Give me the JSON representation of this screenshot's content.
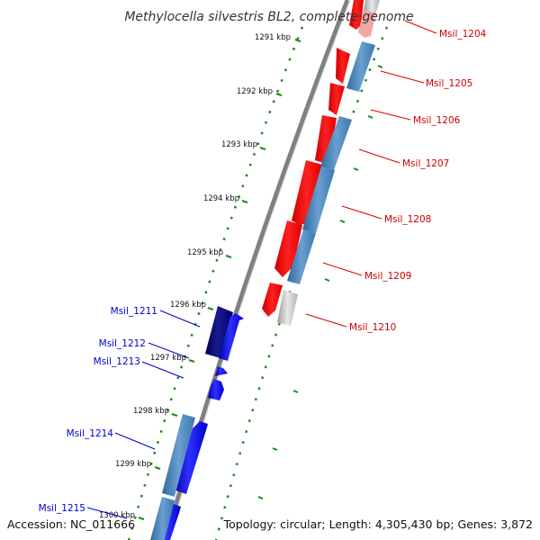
{
  "title": "Methylocella silvestris BL2, complete genome",
  "footer": {
    "accession": "Accession: NC_011666",
    "topology": "Topology: circular; Length: 4,305,430 bp; Genes: 3,872"
  },
  "colors": {
    "backbone": "#808080",
    "tick": "#1a8a1a",
    "forward_cds": "#0000ff",
    "forward_cds_dark": "#000080",
    "reverse_cds": "#ff0000",
    "gene_track": "#4682b4",
    "other_feature": "#c0c0c0",
    "forward_label": "#0000cc",
    "reverse_label": "#cc0000"
  },
  "ticks": [
    {
      "label": "1291 kbp"
    },
    {
      "label": "1292 kbp"
    },
    {
      "label": "1293 kbp"
    },
    {
      "label": "1294 kbp"
    },
    {
      "label": "1295 kbp"
    },
    {
      "label": "1296 kbp"
    },
    {
      "label": "1297 kbp"
    },
    {
      "label": "1298 kbp"
    },
    {
      "label": "1299 kbp"
    },
    {
      "label": "1300 kbp"
    }
  ],
  "genes": [
    {
      "label": "Msil_1204",
      "strand": "reverse"
    },
    {
      "label": "Msil_1205",
      "strand": "reverse"
    },
    {
      "label": "Msil_1206",
      "strand": "reverse"
    },
    {
      "label": "Msil_1207",
      "strand": "reverse"
    },
    {
      "label": "Msil_1208",
      "strand": "reverse"
    },
    {
      "label": "Msil_1209",
      "strand": "reverse"
    },
    {
      "label": "Msil_1210",
      "strand": "reverse"
    },
    {
      "label": "Msil_1211",
      "strand": "forward"
    },
    {
      "label": "Msil_1212",
      "strand": "forward"
    },
    {
      "label": "Msil_1213",
      "strand": "forward"
    },
    {
      "label": "Msil_1214",
      "strand": "forward"
    },
    {
      "label": "Msil_1215",
      "strand": "forward"
    }
  ]
}
